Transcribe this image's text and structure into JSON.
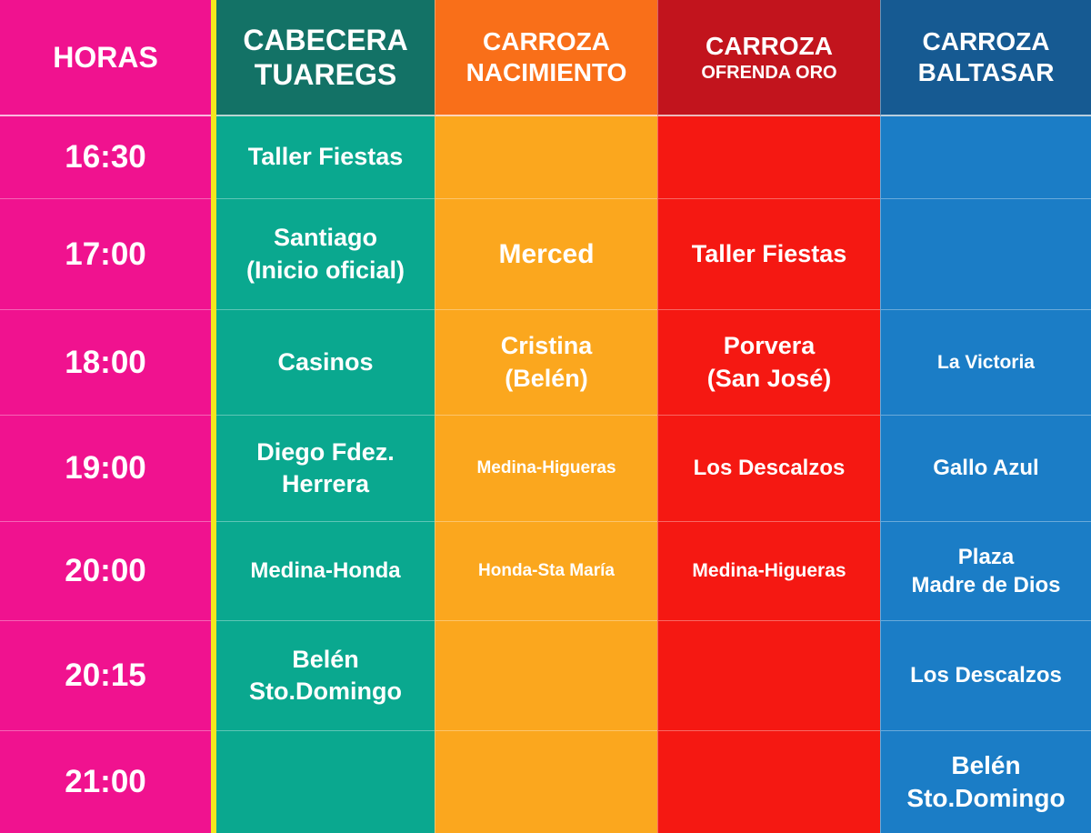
{
  "headers": {
    "hours": "HORAS",
    "cabecera": {
      "line1": "CABECERA",
      "line2": "TUAREGS"
    },
    "nacimiento": {
      "line1": "CARROZA",
      "line2": "NACIMIENTO"
    },
    "ofrenda": {
      "line1": "CARROZA",
      "line2": "OFRENDA ORO"
    },
    "baltasar": {
      "line1": "CARROZA",
      "line2": "BALTASAR"
    }
  },
  "rows": [
    {
      "hour": "16:30",
      "cabecera": "Taller Fiestas",
      "nacimiento": "",
      "ofrenda": "",
      "baltasar": ""
    },
    {
      "hour": "17:00",
      "cabecera": "Santiago\n(Inicio oficial)",
      "nacimiento": "Merced",
      "ofrenda": "Taller Fiestas",
      "baltasar": ""
    },
    {
      "hour": "18:00",
      "cabecera": "Casinos",
      "nacimiento": "Cristina\n(Belén)",
      "ofrenda": "Porvera\n(San José)",
      "baltasar": "La Victoria"
    },
    {
      "hour": "19:00",
      "cabecera": "Diego Fdez.\nHerrera",
      "nacimiento": "Medina-Higueras",
      "ofrenda": "Los Descalzos",
      "baltasar": "Gallo Azul"
    },
    {
      "hour": "20:00",
      "cabecera": "Medina-Honda",
      "nacimiento": "Honda-Sta María",
      "ofrenda": "Medina-Higueras",
      "baltasar": "Plaza\nMadre de Dios"
    },
    {
      "hour": "20:15",
      "cabecera": "Belén\nSto.Domingo",
      "nacimiento": "",
      "ofrenda": "",
      "baltasar": "Los Descalzos"
    },
    {
      "hour": "21:00",
      "cabecera": "",
      "nacimiento": "",
      "ofrenda": "",
      "baltasar": "Belén\nSto.Domingo"
    }
  ],
  "colors": {
    "hours": "#f0128f",
    "cabecera": "#0aa88f",
    "nacimiento": "#fba71e",
    "ofrenda": "#f51812",
    "baltasar": "#1b7dc6",
    "divider": "#f3e61e"
  }
}
